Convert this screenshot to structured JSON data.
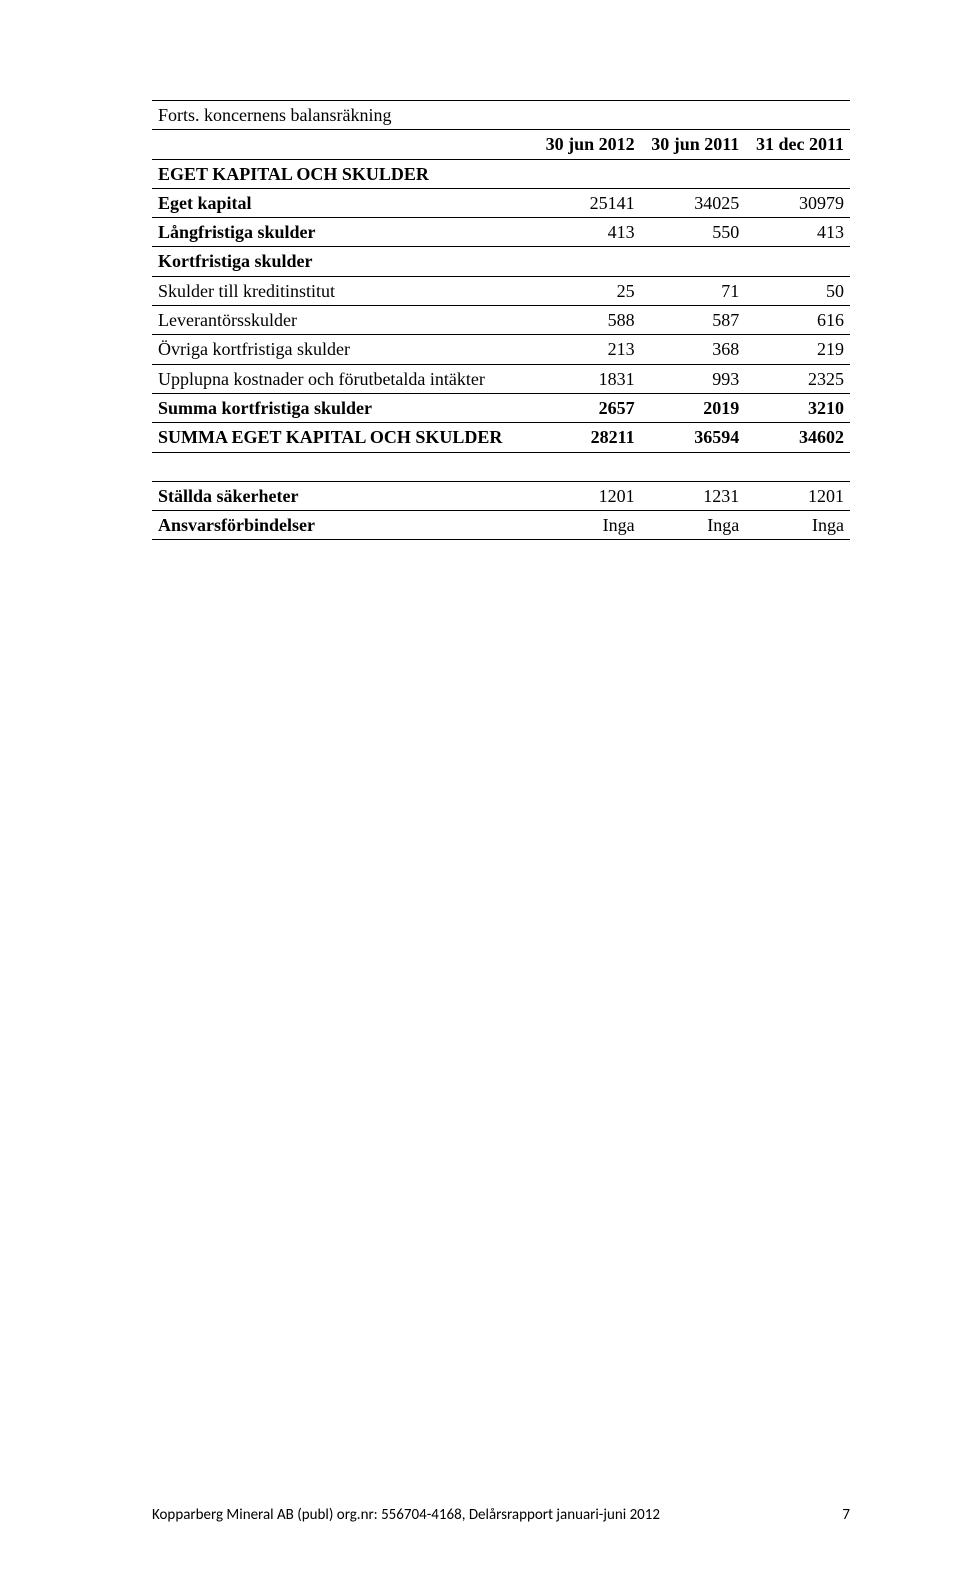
{
  "table": {
    "caption": "Forts. koncernens balansräkning",
    "headers": [
      "30 jun 2012",
      "30 jun 2011",
      "31 dec 2011"
    ],
    "section1_title": "EGET KAPITAL OCH SKULDER",
    "rows1": [
      {
        "label": "Eget kapital",
        "bold": true,
        "v": [
          "25141",
          "34025",
          "30979"
        ]
      },
      {
        "label": "Långfristiga skulder",
        "bold": true,
        "v": [
          "413",
          "550",
          "413"
        ]
      }
    ],
    "section2_title": "Kortfristiga skulder",
    "rows2": [
      {
        "label": "Skulder till kreditinstitut",
        "bold": false,
        "v": [
          "25",
          "71",
          "50"
        ]
      },
      {
        "label": "Leverantörsskulder",
        "bold": false,
        "v": [
          "588",
          "587",
          "616"
        ]
      },
      {
        "label": "Övriga kortfristiga skulder",
        "bold": false,
        "v": [
          "213",
          "368",
          "219"
        ]
      },
      {
        "label": "Upplupna kostnader och förutbetalda intäkter",
        "bold": false,
        "v": [
          "1831",
          "993",
          "2325"
        ]
      }
    ],
    "summary": [
      {
        "label": "Summa kortfristiga skulder",
        "v": [
          "2657",
          "2019",
          "3210"
        ]
      },
      {
        "label": "SUMMA EGET KAPITAL OCH SKULDER",
        "v": [
          "28211",
          "36594",
          "34602"
        ]
      }
    ],
    "pledged": {
      "label": "Ställda säkerheter",
      "v": [
        "1201",
        "1231",
        "1201"
      ]
    },
    "contingent": {
      "label": "Ansvarsförbindelser",
      "v": [
        "Inga",
        "Inga",
        "Inga"
      ]
    }
  },
  "footer": {
    "text": "Kopparberg Mineral AB (publ) org.nr: 556704-4168, Delårsrapport januari-juni 2012",
    "page": "7"
  }
}
